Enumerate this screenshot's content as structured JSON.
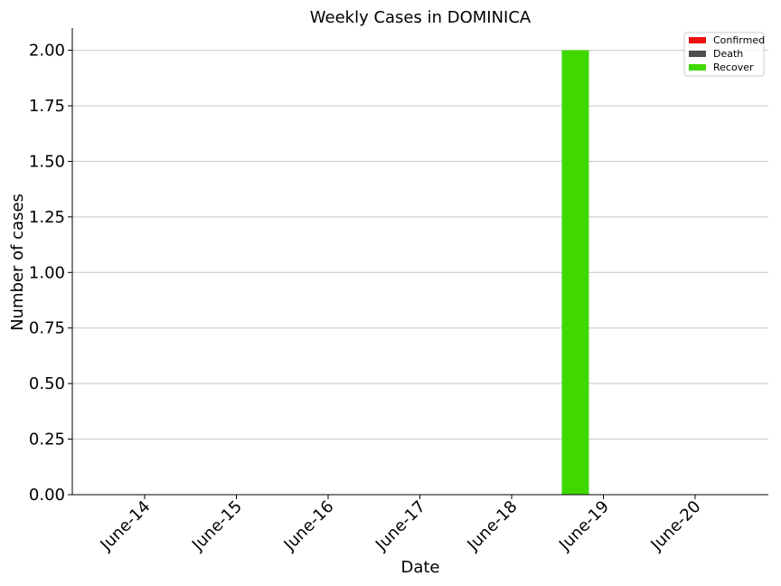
{
  "chart_data": {
    "type": "bar",
    "title": "Weekly Cases in DOMINICA",
    "xlabel": "Date",
    "ylabel": "Number of cases",
    "categories": [
      "June-14",
      "June-15",
      "June-16",
      "June-17",
      "June-18",
      "June-19",
      "June-20"
    ],
    "series": [
      {
        "name": "Confirmed",
        "color": "#ee1111",
        "values": [
          0,
          0,
          0,
          0,
          0,
          0,
          0
        ]
      },
      {
        "name": "Death",
        "color": "#4d4d4d",
        "values": [
          0,
          0,
          0,
          0,
          0,
          0,
          0
        ]
      },
      {
        "name": "Recover",
        "color": "#3fd900",
        "values": [
          0,
          0,
          0,
          0,
          0,
          2,
          0
        ]
      }
    ],
    "ylim": [
      0,
      2.1
    ],
    "yticks": [
      "0.00",
      "0.25",
      "0.50",
      "0.75",
      "1.00",
      "1.25",
      "1.50",
      "1.75",
      "2.00"
    ],
    "grid": "horizontal",
    "legend_position": "top-right"
  }
}
